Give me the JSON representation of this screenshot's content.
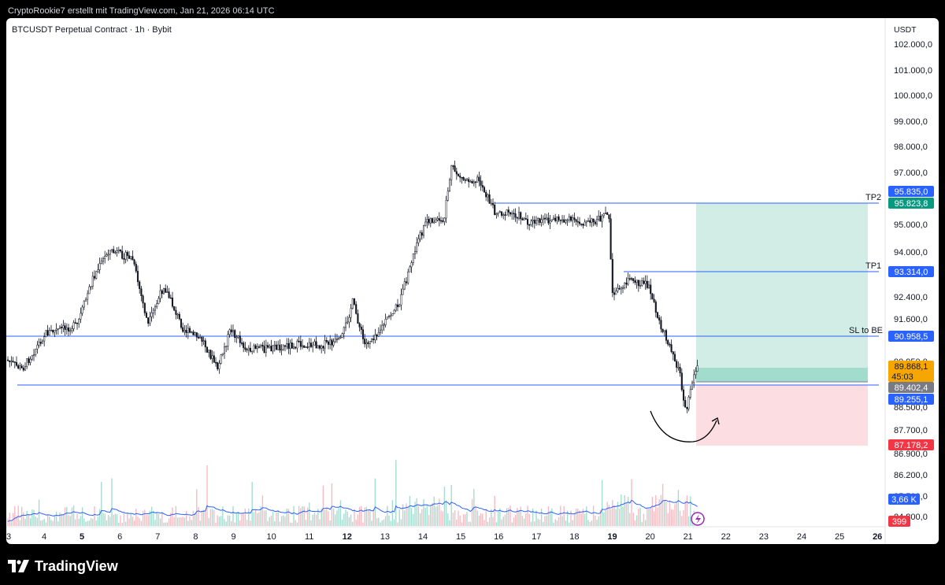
{
  "header": {
    "caption": "CryptoRookie7 erstellt mit TradingView.com, Jan 21, 2026 06:14 UTC"
  },
  "chart": {
    "symbol_title": "BTCUSDT Perpetual Contract · 1h · Bybit",
    "currency": "USDT",
    "price_axis": [
      "102.000,0",
      "101.000,0",
      "100.000,0",
      "99.000,0",
      "98.000,0",
      "97.000,0",
      "95.000,0",
      "94.000,0",
      "92.400,0",
      "91.600,0",
      "90.950,0",
      "88.500,0",
      "87.700,0",
      "86.900,0",
      "86.200,0",
      "85.500,0",
      "84.800,0"
    ],
    "date_axis": [
      {
        "label": "3",
        "bold": false
      },
      {
        "label": "4",
        "bold": false
      },
      {
        "label": "5",
        "bold": true
      },
      {
        "label": "6",
        "bold": false
      },
      {
        "label": "7",
        "bold": false
      },
      {
        "label": "8",
        "bold": false
      },
      {
        "label": "9",
        "bold": false
      },
      {
        "label": "10",
        "bold": false
      },
      {
        "label": "11",
        "bold": false
      },
      {
        "label": "12",
        "bold": true
      },
      {
        "label": "13",
        "bold": false
      },
      {
        "label": "14",
        "bold": false
      },
      {
        "label": "15",
        "bold": false
      },
      {
        "label": "16",
        "bold": false
      },
      {
        "label": "17",
        "bold": false
      },
      {
        "label": "18",
        "bold": false
      },
      {
        "label": "19",
        "bold": true
      },
      {
        "label": "20",
        "bold": false
      },
      {
        "label": "21",
        "bold": false
      },
      {
        "label": "22",
        "bold": false
      },
      {
        "label": "23",
        "bold": false
      },
      {
        "label": "24",
        "bold": false
      },
      {
        "label": "25",
        "bold": false
      },
      {
        "label": "26",
        "bold": true
      }
    ],
    "annotations": {
      "tp2": "TP2",
      "tp1": "TP1",
      "sl_be": "SL to BE"
    },
    "price_badges": {
      "tp2_a": "95.835,0",
      "tp2_b": "95.823,8",
      "tp1": "93.314,0",
      "sl_be": "90.958,5",
      "last_price": "89.868,1",
      "countdown": "45:03",
      "entry": "89.402,4",
      "support": "89.255,1",
      "stop": "87.178,2",
      "volume_ma": "3,66 K",
      "volume": "399"
    },
    "colors": {
      "blue_line": "#2962ff",
      "badge_blue": "#2962ff",
      "badge_green": "#089981",
      "badge_orange": "#f7a600",
      "badge_gray": "#787b86",
      "badge_red": "#f23645",
      "profit_zone": "#d1ede6",
      "loss_zone": "#fbdde2",
      "volume_up": "#a6dccf",
      "volume_down": "#f5bcc3"
    }
  },
  "footer": {
    "brand": "TradingView"
  }
}
